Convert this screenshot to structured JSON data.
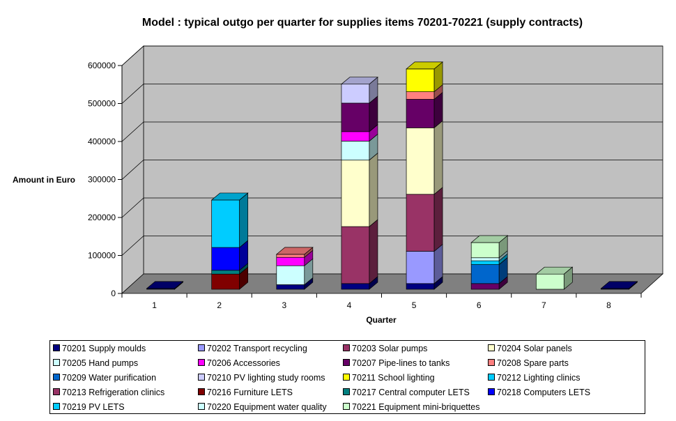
{
  "chart_data": {
    "type": "bar",
    "stacked": true,
    "three_d": true,
    "title": "Model : typical outgo per quarter for supplies items 70201-70221 (supply contracts)",
    "xlabel": "Quarter",
    "ylabel": "Amount in Euro",
    "categories": [
      "1",
      "2",
      "3",
      "4",
      "5",
      "6",
      "7",
      "8"
    ],
    "ylim": [
      0,
      600000
    ],
    "yticks": [
      "0",
      "100000",
      "200000",
      "300000",
      "400000",
      "500000",
      "600000"
    ],
    "grid": true,
    "legend_position": "bottom",
    "series": [
      {
        "name": "70201 Supply moulds",
        "color": "#000080",
        "values": [
          2000,
          0,
          12000,
          15000,
          15000,
          0,
          0,
          2000
        ]
      },
      {
        "name": "70202 Transport recycling",
        "color": "#9999FF",
        "values": [
          0,
          0,
          0,
          0,
          85000,
          0,
          0,
          0
        ]
      },
      {
        "name": "70203 Solar pumps",
        "color": "#993366",
        "values": [
          0,
          0,
          0,
          150000,
          150000,
          0,
          0,
          0
        ]
      },
      {
        "name": "70204 Solar panels",
        "color": "#FFFFCC",
        "values": [
          0,
          0,
          0,
          175000,
          175000,
          0,
          0,
          0
        ]
      },
      {
        "name": "70205 Hand pumps",
        "color": "#CCFFFF",
        "values": [
          0,
          0,
          50000,
          50000,
          0,
          0,
          0,
          0
        ]
      },
      {
        "name": "70206 Accessories",
        "color": "#FF00FF",
        "values": [
          0,
          0,
          22000,
          25000,
          0,
          0,
          0,
          0
        ]
      },
      {
        "name": "70207 Pipe-lines to tanks",
        "color": "#660066",
        "values": [
          0,
          0,
          0,
          75000,
          75000,
          15000,
          0,
          0
        ]
      },
      {
        "name": "70208 Spare parts",
        "color": "#FF8080",
        "values": [
          0,
          0,
          8000,
          0,
          20000,
          0,
          0,
          0
        ]
      },
      {
        "name": "70209 Water purification",
        "color": "#0066CC",
        "values": [
          0,
          0,
          0,
          0,
          0,
          50000,
          0,
          0
        ]
      },
      {
        "name": "70210 PV lighting study rooms",
        "color": "#CCCCFF",
        "values": [
          0,
          0,
          0,
          50000,
          0,
          0,
          0,
          0
        ]
      },
      {
        "name": "70211 School lighting",
        "color": "#FFFF00",
        "values": [
          0,
          0,
          0,
          0,
          60000,
          0,
          0,
          0
        ]
      },
      {
        "name": "70212 Lighting clinics",
        "color": "#00CCFF",
        "values": [
          0,
          0,
          0,
          0,
          0,
          10000,
          0,
          0
        ]
      },
      {
        "name": "70213 Refrigeration clinics",
        "color": "#993366",
        "values": [
          0,
          0,
          0,
          0,
          0,
          0,
          0,
          0
        ]
      },
      {
        "name": "70216 Furniture LETS",
        "color": "#800000",
        "values": [
          0,
          40000,
          0,
          0,
          0,
          0,
          0,
          0
        ]
      },
      {
        "name": "70217 Central computer LETS",
        "color": "#008080",
        "values": [
          0,
          10000,
          0,
          0,
          0,
          0,
          0,
          0
        ]
      },
      {
        "name": "70218 Computers LETS",
        "color": "#0000FF",
        "values": [
          0,
          60000,
          0,
          0,
          0,
          0,
          0,
          0
        ]
      },
      {
        "name": "70219 PV LETS",
        "color": "#00CCFF",
        "values": [
          0,
          125000,
          0,
          0,
          0,
          0,
          0,
          0
        ]
      },
      {
        "name": "70220 Equipment water quality",
        "color": "#CCFFFF",
        "values": [
          0,
          0,
          0,
          0,
          0,
          8000,
          0,
          0
        ]
      },
      {
        "name": "70221 Equipment mini-briquettes",
        "color": "#CCFFCC",
        "values": [
          0,
          0,
          0,
          0,
          0,
          40000,
          40000,
          0
        ]
      }
    ]
  },
  "colors": {
    "wall": "#C0C0C0",
    "floor": "#808080",
    "gridline": "#000000"
  }
}
